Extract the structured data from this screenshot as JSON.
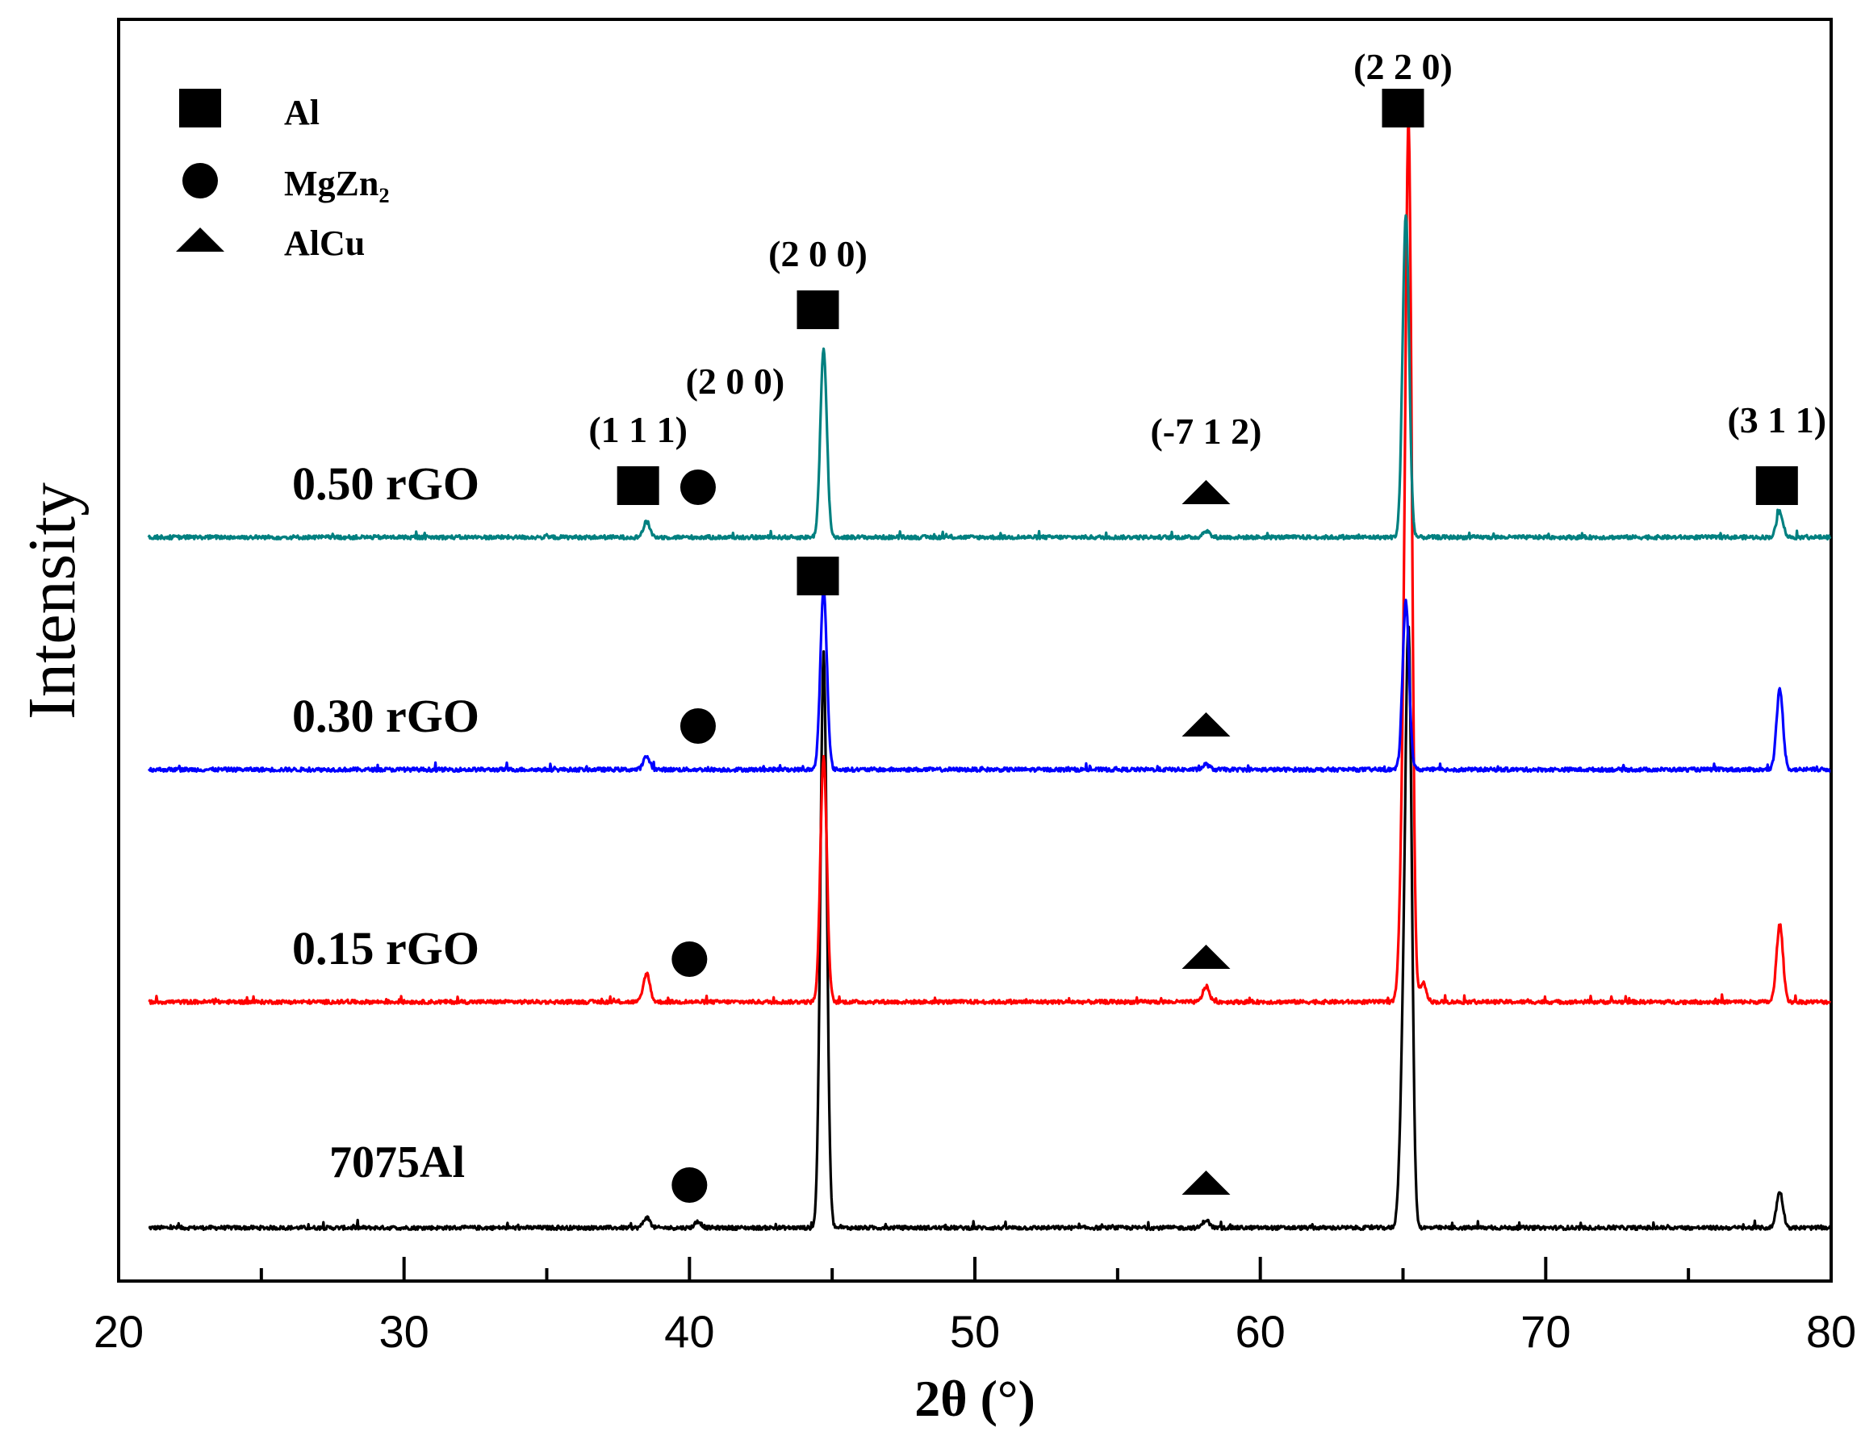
{
  "chart_data": {
    "type": "line",
    "title": "",
    "xlabel": "2θ (°)",
    "ylabel": "Intensity",
    "xlim": [
      20,
      80
    ],
    "xticks": [
      20,
      30,
      40,
      50,
      60,
      70,
      80
    ],
    "x_minor_ticks": [
      25,
      35,
      45,
      55,
      65,
      75
    ],
    "grid": false,
    "yticks_shown": false,
    "baseline_level": [
      0.1,
      1.85,
      3.65,
      5.45
    ],
    "peak_width_deg": 0.16,
    "series": [
      {
        "name": "7075Al",
        "color": "#000000",
        "baseline": 0.1,
        "peaks": [
          [
            38.5,
            0.08
          ],
          [
            40.3,
            0.05
          ],
          [
            44.7,
            4.45
          ],
          [
            58.1,
            0.06
          ],
          [
            65.0,
            1.1
          ],
          [
            65.2,
            4.42
          ],
          [
            78.2,
            0.28
          ]
        ]
      },
      {
        "name": "0.15 rGO",
        "color": "#ff0000",
        "baseline": 1.85,
        "peaks": [
          [
            38.5,
            0.22
          ],
          [
            44.7,
            1.9
          ],
          [
            58.1,
            0.12
          ],
          [
            65.0,
            1.2
          ],
          [
            65.2,
            6.55
          ],
          [
            65.7,
            0.15
          ],
          [
            78.2,
            0.6
          ]
        ]
      },
      {
        "name": "0.30 rGO",
        "color": "#0000ff",
        "baseline": 3.65,
        "peaks": [
          [
            38.5,
            0.1
          ],
          [
            44.7,
            1.4
          ],
          [
            58.1,
            0.04
          ],
          [
            65.1,
            1.3
          ],
          [
            78.2,
            0.62
          ]
        ]
      },
      {
        "name": "0.50 rGO",
        "color": "#008080",
        "baseline": 5.45,
        "peaks": [
          [
            38.5,
            0.12
          ],
          [
            44.7,
            1.45
          ],
          [
            58.1,
            0.05
          ],
          [
            65.1,
            2.5
          ],
          [
            78.2,
            0.2
          ]
        ]
      }
    ],
    "legend": {
      "position": "top-left",
      "entries": [
        {
          "marker": "square",
          "label": "Al"
        },
        {
          "marker": "circle",
          "label": "MgZn₂"
        },
        {
          "marker": "triangle",
          "label": "AlCu"
        }
      ]
    },
    "annotations": [
      {
        "text": "(1 1 1)",
        "x": 38.2
      },
      {
        "text": "(2 0 0)",
        "x": 41.6
      },
      {
        "text": "(2 0 0)",
        "x": 44.5
      },
      {
        "text": "(-7 1 2)",
        "x": 58.1
      },
      {
        "text": "(2 2 0)",
        "x": 65.0
      },
      {
        "text": "(3 1 1)",
        "x": 78.1
      }
    ],
    "phase_markers": [
      {
        "phase": "Al",
        "marker": "square",
        "x": 38.2,
        "series": "0.50 rGO"
      },
      {
        "phase": "MgZn₂",
        "marker": "circle",
        "x": 40.3,
        "series": "0.50 rGO"
      },
      {
        "phase": "Al",
        "marker": "square",
        "x": 44.5,
        "series": "0.50 rGO"
      },
      {
        "phase": "AlCu",
        "marker": "triangle",
        "x": 58.1,
        "series": "0.50 rGO"
      },
      {
        "phase": "Al",
        "marker": "square",
        "x": 65.0,
        "series": "0.50 rGO"
      },
      {
        "phase": "Al",
        "marker": "square",
        "x": 78.1,
        "series": "0.50 rGO"
      },
      {
        "phase": "Al",
        "marker": "square",
        "x": 44.5,
        "series": "0.30 rGO"
      },
      {
        "phase": "MgZn₂",
        "marker": "circle",
        "x": 40.3,
        "series": "0.30 rGO"
      },
      {
        "phase": "AlCu",
        "marker": "triangle",
        "x": 58.1,
        "series": "0.30 rGO"
      },
      {
        "phase": "MgZn₂",
        "marker": "circle",
        "x": 40.0,
        "series": "0.15 rGO"
      },
      {
        "phase": "AlCu",
        "marker": "triangle",
        "x": 58.1,
        "series": "0.15 rGO"
      },
      {
        "phase": "MgZn₂",
        "marker": "circle",
        "x": 40.0,
        "series": "7075Al"
      },
      {
        "phase": "AlCu",
        "marker": "triangle",
        "x": 58.1,
        "series": "7075Al"
      }
    ]
  }
}
